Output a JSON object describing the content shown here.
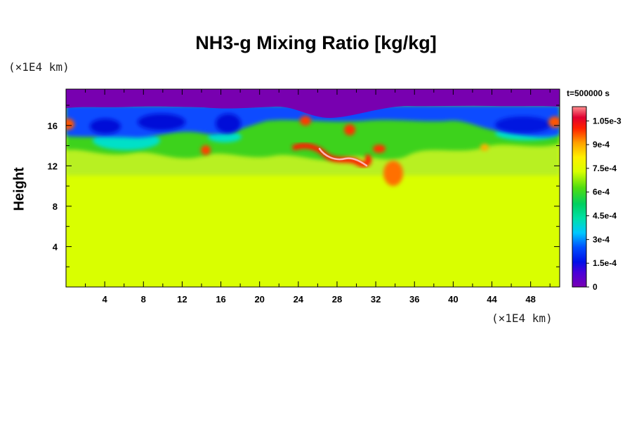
{
  "chart_data": {
    "type": "heatmap",
    "title": "NH3-g Mixing Ratio [kg/kg]",
    "xlabel": "",
    "ylabel": "Height",
    "x_unit": "(×1E4 km)",
    "y_unit": "(×1E4 km)",
    "time_label": "t=500000 s",
    "xlim": [
      0,
      51
    ],
    "ylim": [
      0,
      19.6
    ],
    "x_ticks": [
      4,
      8,
      12,
      16,
      20,
      24,
      28,
      32,
      36,
      40,
      44,
      48
    ],
    "y_ticks": [
      4,
      8,
      12,
      16
    ],
    "colorbar": {
      "range": [
        0,
        0.00114
      ],
      "tick_values": [
        0,
        0.00015,
        0.0003,
        0.00045,
        0.0006,
        0.00075,
        0.0009,
        0.00105
      ],
      "tick_labels": [
        "0",
        "1.5e-4",
        "3e-4",
        "4.5e-4",
        "6e-4",
        "7.5e-4",
        "9e-4",
        "1.05e-3"
      ]
    },
    "fields": {
      "lower_region_value": 0.00075,
      "top_layer_value": 0.0,
      "top_layer_base_height": 18.2,
      "note_regions": [
        {
          "x": [
            0,
            20
          ],
          "y": [
            14.5,
            18
          ],
          "value_range": [
            0.0001,
            0.0005
          ]
        },
        {
          "x": [
            26,
            34
          ],
          "y": [
            12,
            15
          ],
          "value_range": [
            0.0009,
            0.00114
          ]
        },
        {
          "x": [
            44,
            51
          ],
          "y": [
            15,
            17.5
          ],
          "value_range": [
            0.0001,
            0.0003
          ]
        }
      ]
    }
  }
}
